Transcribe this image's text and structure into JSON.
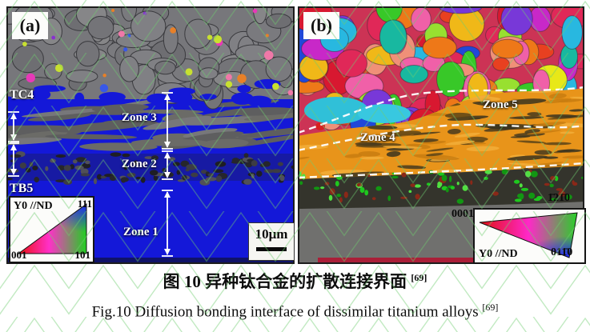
{
  "figure": {
    "panels": {
      "a": {
        "tag": "(a)",
        "material_top": "TC4",
        "material_bottom": "TB5",
        "zone1": "Zone 1",
        "zone2": "Zone 2",
        "zone3": "Zone 3",
        "ipf_legend": {
          "projection": "Y0 //ND",
          "corners": {
            "c001": "001",
            "c101": "101",
            "c111": "111"
          }
        },
        "scale_bar_label": "10μm"
      },
      "b": {
        "tag": "(b)",
        "zone4": "Zone 4",
        "zone5": "Zone 5",
        "ipf_legend": {
          "projection": "Y0 //ND",
          "corners": {
            "c0001": "0001",
            "c1210": "1̄21̄0",
            "c0110": "011̄0"
          }
        }
      }
    },
    "captions": {
      "zh": "图 10  异种钛合金的扩散连接界面 ",
      "zh_ref": "[69]",
      "en": "Fig.10 Diffusion bonding interface of dissimilar titanium alloys ",
      "en_ref": "[69]"
    },
    "colors": {
      "beta_blue": "#1418d8",
      "alpha_gray": "#77777b",
      "orange_zone": "#e8941a",
      "interface_dark": "#34342c",
      "interface_green": "#26c826",
      "bottom_gray": "#70706e",
      "red_strip": "#aa1f38",
      "watermark_green": "#6ecc6e",
      "grain_grays": [
        "#6e6e72",
        "#7a7a7e",
        "#808084",
        "#747478",
        "#868688"
      ],
      "boundary_specks": [
        "#e02020",
        "#e838b8",
        "#8830d0",
        "#3858e8",
        "#e88028",
        "#c8e030",
        "#f078a8"
      ],
      "lath_grays": [
        "#6b6b67",
        "#5e5e5f",
        "#77777a"
      ],
      "zone2_darks": [
        "#26262c",
        "#3c3c44",
        "#505058",
        "#1e1e24"
      ],
      "grain_palette_b": [
        "#e02858",
        "#e84020",
        "#ee7818",
        "#f0b818",
        "#e8e818",
        "#98e030",
        "#38c828",
        "#18b8a0",
        "#28b8e0",
        "#2048d8",
        "#7838d8",
        "#c828c8",
        "#f060a8",
        "#f09078",
        "#d81830"
      ],
      "streak_palette": [
        "#5c4418",
        "#473a1e",
        "#c87c10",
        "#f2ae3a",
        "#3a3420"
      ],
      "speckle_greens": [
        "#1ec81e",
        "#50e040",
        "#129612",
        "#8a2818"
      ]
    }
  }
}
